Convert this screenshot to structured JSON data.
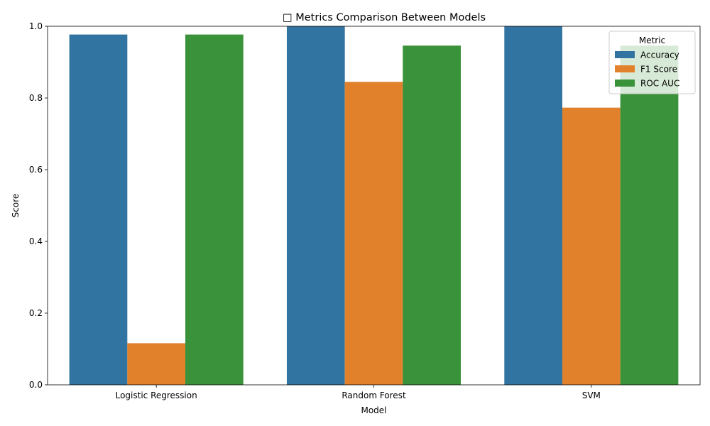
{
  "chart_data": {
    "type": "bar",
    "title": "□ Metrics Comparison Between Models",
    "xlabel": "Model",
    "ylabel": "Score",
    "ylim": [
      0,
      1
    ],
    "yticks": [
      "0.0",
      "0.2",
      "0.4",
      "0.6",
      "0.8",
      "1.0"
    ],
    "categories": [
      "Logistic Regression",
      "Random Forest",
      "SVM"
    ],
    "series": [
      {
        "name": "Accuracy",
        "color": "#3274a1",
        "values": [
          0.977,
          1.0,
          1.0
        ]
      },
      {
        "name": "F1 Score",
        "color": "#e1812c",
        "values": [
          0.116,
          0.845,
          0.773
        ]
      },
      {
        "name": "ROC AUC",
        "color": "#3a923a",
        "values": [
          0.977,
          0.946,
          0.946
        ]
      }
    ],
    "legend": {
      "title": "Metric",
      "placement": "upper-right"
    },
    "grid": false
  }
}
